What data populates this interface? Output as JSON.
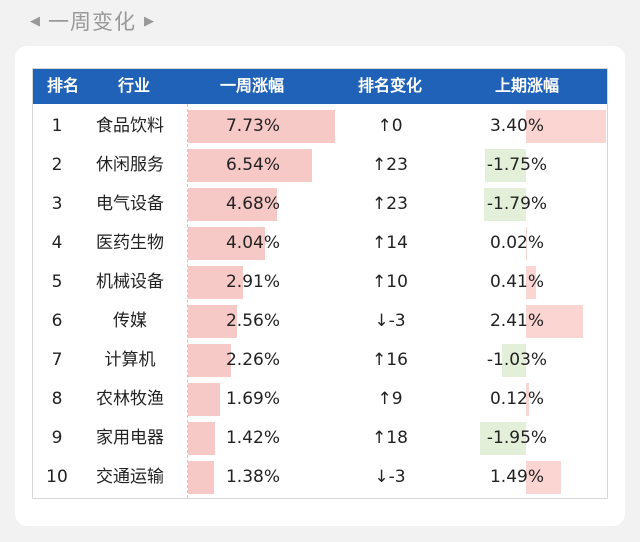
{
  "header": {
    "left_arrow": "◀",
    "title": "一周变化",
    "right_arrow": "▶"
  },
  "colors": {
    "header_bg": "#1f62b7",
    "bar_positive": "#f7c9c6",
    "bar_negative": "#e3efd8",
    "up_color": "#e0443a",
    "down_color": "#2f9a3a"
  },
  "table": {
    "headers": [
      "排名",
      "行业",
      "一周涨幅",
      "排名变化",
      "上期涨幅"
    ],
    "rows": [
      {
        "rank": "1",
        "industry": "食品饮料",
        "weekly": "7.73%",
        "change": "↑0",
        "dir": "up",
        "prev": "3.40%"
      },
      {
        "rank": "2",
        "industry": "休闲服务",
        "weekly": "6.54%",
        "change": "↑23",
        "dir": "up",
        "prev": "-1.75%"
      },
      {
        "rank": "3",
        "industry": "电气设备",
        "weekly": "4.68%",
        "change": "↑23",
        "dir": "up",
        "prev": "-1.79%"
      },
      {
        "rank": "4",
        "industry": "医药生物",
        "weekly": "4.04%",
        "change": "↑14",
        "dir": "up",
        "prev": "0.02%"
      },
      {
        "rank": "5",
        "industry": "机械设备",
        "weekly": "2.91%",
        "change": "↑10",
        "dir": "up",
        "prev": "0.41%"
      },
      {
        "rank": "6",
        "industry": "传媒",
        "weekly": "2.56%",
        "change": "↓-3",
        "dir": "down",
        "prev": "2.41%"
      },
      {
        "rank": "7",
        "industry": "计算机",
        "weekly": "2.26%",
        "change": "↑16",
        "dir": "up",
        "prev": "-1.03%"
      },
      {
        "rank": "8",
        "industry": "农林牧渔",
        "weekly": "1.69%",
        "change": "↑9",
        "dir": "up",
        "prev": "0.12%"
      },
      {
        "rank": "9",
        "industry": "家用电器",
        "weekly": "1.42%",
        "change": "↑18",
        "dir": "up",
        "prev": "-1.95%"
      },
      {
        "rank": "10",
        "industry": "交通运输",
        "weekly": "1.38%",
        "change": "↓-3",
        "dir": "down",
        "prev": "1.49%"
      }
    ]
  },
  "chart_data": {
    "type": "table",
    "columns": [
      "排名",
      "行业",
      "一周涨幅",
      "排名变化",
      "上期涨幅"
    ],
    "categories": [
      "食品饮料",
      "休闲服务",
      "电气设备",
      "医药生物",
      "机械设备",
      "传媒",
      "计算机",
      "农林牧渔",
      "家用电器",
      "交通运输"
    ],
    "series": [
      {
        "name": "一周涨幅",
        "values": [
          7.73,
          6.54,
          4.68,
          4.04,
          2.91,
          2.56,
          2.26,
          1.69,
          1.42,
          1.38
        ]
      },
      {
        "name": "排名变化",
        "values": [
          0,
          23,
          23,
          14,
          10,
          -3,
          16,
          9,
          18,
          -3
        ]
      },
      {
        "name": "上期涨幅",
        "values": [
          3.4,
          -1.75,
          -1.79,
          0.02,
          0.41,
          2.41,
          -1.03,
          0.12,
          -1.95,
          1.49
        ]
      }
    ]
  }
}
